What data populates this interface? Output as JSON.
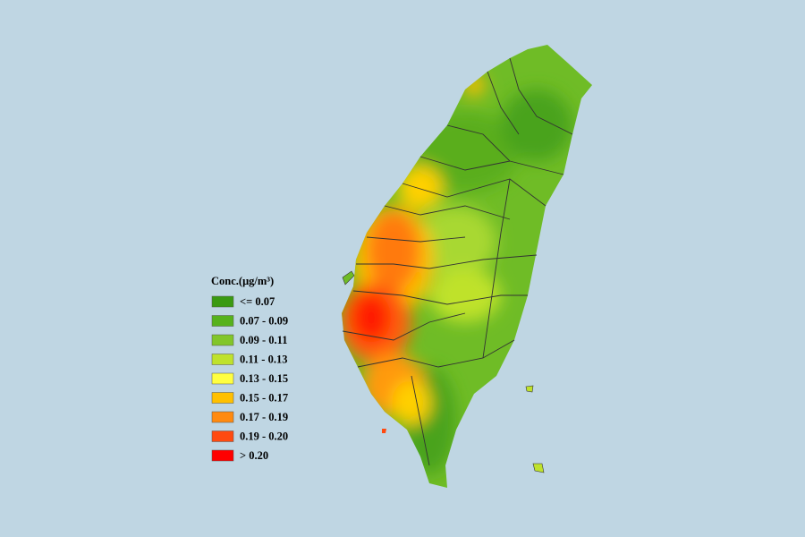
{
  "legend": {
    "title": "Conc.(μg/m³)",
    "items": [
      {
        "label": "<= 0.07",
        "color": "#3a9a12"
      },
      {
        "label": "0.07 - 0.09",
        "color": "#56b21c"
      },
      {
        "label": "0.09 - 0.11",
        "color": "#82c62a"
      },
      {
        "label": "0.11 - 0.13",
        "color": "#bfe22c"
      },
      {
        "label": "0.13 - 0.15",
        "color": "#ffff40"
      },
      {
        "label": "0.15 - 0.17",
        "color": "#ffc000"
      },
      {
        "label": "0.17 - 0.19",
        "color": "#ff8a10"
      },
      {
        "label": "0.19 - 0.20",
        "color": "#ff4a10"
      },
      {
        "label": "> 0.20",
        "color": "#ff0000"
      }
    ]
  }
}
